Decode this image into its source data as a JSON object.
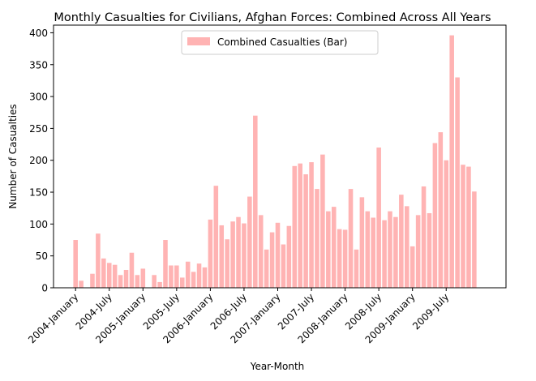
{
  "chart_data": {
    "type": "bar",
    "title": "Monthly Casualties for Civilians, Afghan Forces: Combined Across All Years",
    "xlabel": "Year-Month",
    "ylabel": "Number of Casualties",
    "ylim": [
      0,
      412
    ],
    "yticks": [
      0,
      50,
      100,
      150,
      200,
      250,
      300,
      350,
      400
    ],
    "xticks": [
      {
        "label": "2004-January",
        "index": 0
      },
      {
        "label": "2004-July",
        "index": 6
      },
      {
        "label": "2005-January",
        "index": 12
      },
      {
        "label": "2005-July",
        "index": 18
      },
      {
        "label": "2006-January",
        "index": 24
      },
      {
        "label": "2006-July",
        "index": 30
      },
      {
        "label": "2007-January",
        "index": 36
      },
      {
        "label": "2007-July",
        "index": 42
      },
      {
        "label": "2008-January",
        "index": 48
      },
      {
        "label": "2008-July",
        "index": 54
      },
      {
        "label": "2009-January",
        "index": 60
      },
      {
        "label": "2009-July",
        "index": 66
      }
    ],
    "color": "#ffb3b3",
    "legend": {
      "position": "top-center"
    },
    "series": [
      {
        "name": "Combined Casualties (Bar)",
        "values": [
          75,
          11,
          0,
          22,
          85,
          46,
          39,
          36,
          20,
          28,
          55,
          20,
          30,
          0,
          20,
          9,
          75,
          35,
          35,
          16,
          41,
          25,
          38,
          32,
          107,
          160,
          98,
          76,
          104,
          111,
          101,
          143,
          270,
          114,
          60,
          87,
          102,
          68,
          97,
          191,
          195,
          178,
          197,
          155,
          209,
          120,
          127,
          92,
          91,
          155,
          60,
          142,
          120,
          110,
          220,
          106,
          120,
          111,
          146,
          128,
          65,
          114,
          159,
          117,
          227,
          244,
          200,
          396,
          330,
          193,
          190,
          151
        ]
      }
    ]
  }
}
